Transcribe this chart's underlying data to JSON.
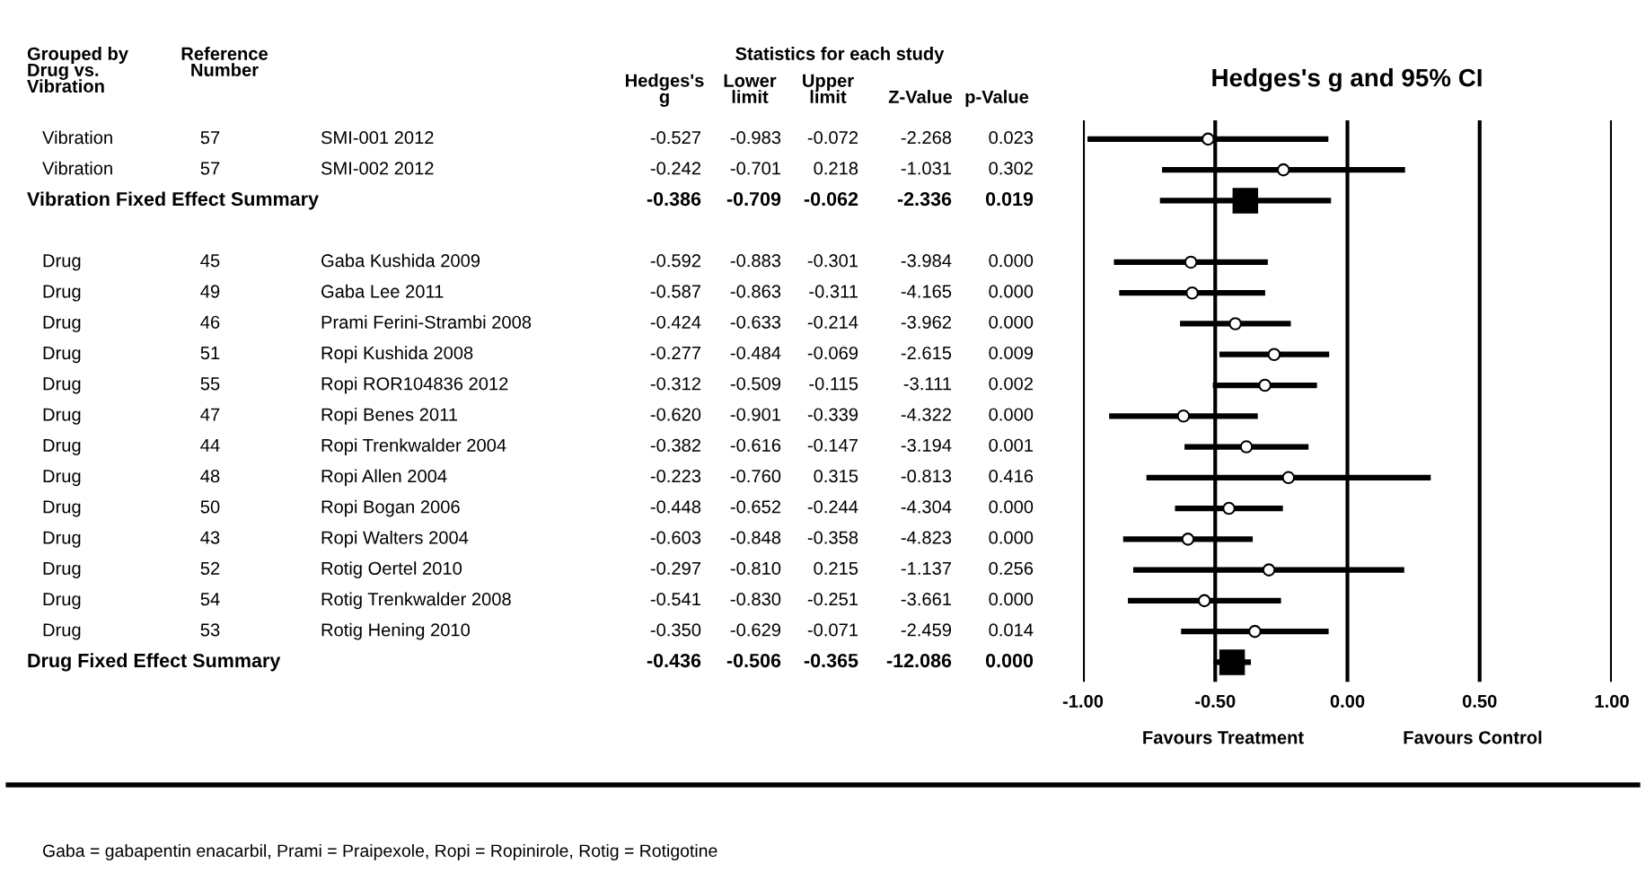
{
  "chart_data": [
    {
      "type": "other",
      "title": "Statistics for each study",
      "categories": [
        "Grouped by\nDrug vs.\nVibration",
        "Reference\nNumber",
        null,
        "Hedges's\ng",
        "Lower\nlimit",
        "Upper\nlimit",
        "Z-Value",
        "p-Value"
      ],
      "cell_labels": [
        [
          "Vibration",
          "57",
          "SMI-001 2012",
          "-0.527",
          "-0.983",
          "-0.072",
          "-2.268",
          "0.023"
        ],
        [
          "Vibration",
          "57",
          "SMI-002 2012",
          "-0.242",
          "-0.701",
          "0.218",
          "-1.031",
          "0.302"
        ],
        [
          "Vibration Fixed Effect Summary",
          null,
          null,
          "-0.386",
          "-0.709",
          "-0.062",
          "-2.336",
          "0.019"
        ],
        [
          null,
          null,
          null,
          null,
          null,
          null,
          null,
          null
        ],
        [
          "Drug",
          "45",
          "Gaba Kushida 2009",
          "-0.592",
          "-0.883",
          "-0.301",
          "-3.984",
          "0.000"
        ],
        [
          "Drug",
          "49",
          "Gaba Lee 2011",
          "-0.587",
          "-0.863",
          "-0.311",
          "-4.165",
          "0.000"
        ],
        [
          "Drug",
          "46",
          "Prami Ferini-Strambi 2008",
          "-0.424",
          "-0.633",
          "-0.214",
          "-3.962",
          "0.000"
        ],
        [
          "Drug",
          "51",
          "Ropi Kushida 2008",
          "-0.277",
          "-0.484",
          "-0.069",
          "-2.615",
          "0.009"
        ],
        [
          "Drug",
          "55",
          "Ropi ROR104836 2012",
          "-0.312",
          "-0.509",
          "-0.115",
          "-3.111",
          "0.002"
        ],
        [
          "Drug",
          "47",
          "Ropi Benes 2011",
          "-0.620",
          "-0.901",
          "-0.339",
          "-4.322",
          "0.000"
        ],
        [
          "Drug",
          "44",
          "Ropi Trenkwalder 2004",
          "-0.382",
          "-0.616",
          "-0.147",
          "-3.194",
          "0.001"
        ],
        [
          "Drug",
          "48",
          "Ropi Allen 2004",
          "-0.223",
          "-0.760",
          "0.315",
          "-0.813",
          "0.416"
        ],
        [
          "Drug",
          "50",
          "Ropi Bogan 2006",
          "-0.448",
          "-0.652",
          "-0.244",
          "-4.304",
          "0.000"
        ],
        [
          "Drug",
          "43",
          "Ropi Walters 2004",
          "-0.603",
          "-0.848",
          "-0.358",
          "-4.823",
          "0.000"
        ],
        [
          "Drug",
          "52",
          "Rotig Oertel 2010",
          "-0.297",
          "-0.810",
          "0.215",
          "-1.137",
          "0.256"
        ],
        [
          "Drug",
          "54",
          "Rotig Trenkwalder 2008",
          "-0.541",
          "-0.830",
          "-0.251",
          "-3.661",
          "0.000"
        ],
        [
          "Drug",
          "53",
          "Rotig Hening 2010",
          "-0.350",
          "-0.629",
          "-0.071",
          "-2.459",
          "0.014"
        ],
        [
          "Drug Fixed Effect Summary",
          null,
          null,
          "-0.436",
          "-0.506",
          "-0.365",
          "-12.086",
          "0.000"
        ]
      ],
      "annotations": [
        "Gaba = gabapentin enacarbil, Prami = Praipexole, Ropi = Ropinirole, Rotig = Rotigotine"
      ]
    },
    {
      "type": "scatter",
      "orientation": "horizontal",
      "title": "Hedges's g and 95% CI",
      "categories": [
        null,
        null,
        null,
        null,
        null,
        null,
        null,
        null,
        null,
        null,
        null,
        null,
        null,
        null,
        null,
        null,
        null,
        null
      ],
      "series": [
        {
          "color": "#000000",
          "marker": "circle",
          "values": [
            -0.527,
            -0.242,
            null,
            null,
            -0.592,
            -0.587,
            -0.424,
            -0.277,
            -0.312,
            -0.62,
            -0.382,
            -0.223,
            -0.448,
            -0.603,
            -0.297,
            -0.541,
            -0.35,
            null
          ],
          "errors": [
            [
              -0.983,
              -0.072
            ],
            [
              -0.701,
              0.218
            ],
            null,
            null,
            [
              -0.883,
              -0.301
            ],
            [
              -0.863,
              -0.311
            ],
            [
              -0.633,
              -0.214
            ],
            [
              -0.484,
              -0.069
            ],
            [
              -0.509,
              -0.115
            ],
            [
              -0.901,
              -0.339
            ],
            [
              -0.616,
              -0.147
            ],
            [
              -0.76,
              0.315
            ],
            [
              -0.652,
              -0.244
            ],
            [
              -0.848,
              -0.358
            ],
            [
              -0.81,
              0.215
            ],
            [
              -0.83,
              -0.251
            ],
            [
              -0.629,
              -0.071
            ],
            null
          ]
        },
        {
          "color": "#000000",
          "marker": "square",
          "values": [
            null,
            null,
            -0.386,
            null,
            null,
            null,
            null,
            null,
            null,
            null,
            null,
            null,
            null,
            null,
            null,
            null,
            null,
            -0.436
          ],
          "errors": [
            null,
            null,
            [
              -0.709,
              -0.062
            ],
            null,
            null,
            null,
            null,
            null,
            null,
            null,
            null,
            null,
            null,
            null,
            null,
            null,
            null,
            [
              -0.506,
              -0.365
            ]
          ]
        }
      ],
      "xlim": [
        -1,
        1
      ],
      "xticks": [
        {
          "value": -1,
          "label": "-1.00"
        },
        {
          "value": -0.5,
          "label": "-0.50"
        },
        {
          "value": 0,
          "label": "0.00"
        },
        {
          "value": 0.5,
          "label": "0.50"
        },
        {
          "value": 1,
          "label": "1.00"
        }
      ],
      "grid": "x",
      "annotations": [
        "Favours Treatment",
        "Favours Control"
      ]
    }
  ]
}
